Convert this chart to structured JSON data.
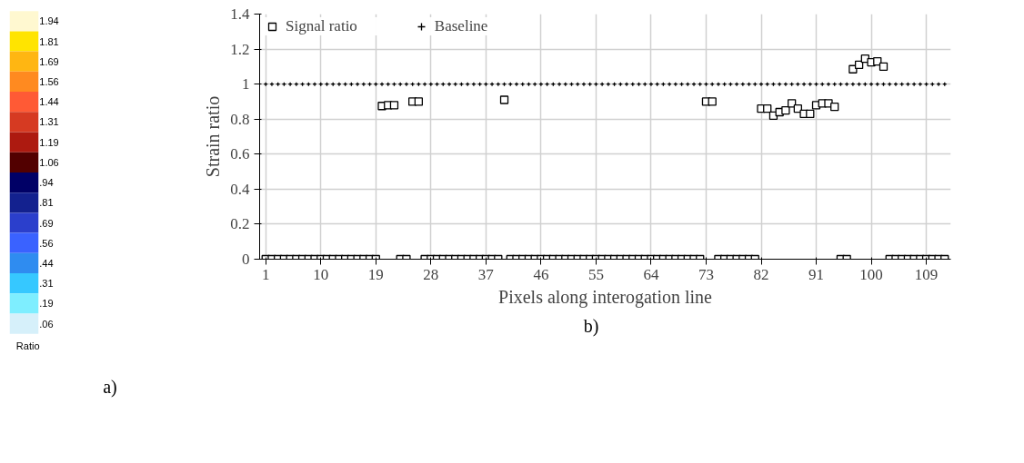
{
  "chart_data": [
    {
      "type": "other",
      "categories": [
        "1.94",
        "1.81",
        "1.69",
        "1.56",
        "1.44",
        "1.31",
        "1.19",
        "1.06",
        ".94",
        ".81",
        ".69",
        ".56",
        ".44",
        ".31",
        ".19",
        ".06"
      ],
      "colors": [
        "#fff8d0",
        "#ffe400",
        "#ffb612",
        "#ff8a20",
        "#ff5a35",
        "#d63a22",
        "#ad1a10",
        "#520000",
        "#000066",
        "#13218f",
        "#2b3fcc",
        "#3a62ff",
        "#2f8cf0",
        "#36c8ff",
        "#7eeeff",
        "#d6f0fa"
      ],
      "xlabel": "Ratio",
      "annotations": [
        "a)"
      ]
    },
    {
      "type": "scatter",
      "xlabel": "Pixels along interogation line",
      "ylabel": "Strain ratio",
      "x": [
        1,
        2,
        3,
        4,
        5,
        6,
        7,
        8,
        9,
        10,
        11,
        12,
        13,
        14,
        15,
        16,
        17,
        18,
        19,
        20,
        21,
        22,
        23,
        24,
        25,
        26,
        27,
        28,
        29,
        30,
        31,
        32,
        33,
        34,
        35,
        36,
        37,
        38,
        39,
        40,
        41,
        42,
        43,
        44,
        45,
        46,
        47,
        48,
        49,
        50,
        51,
        52,
        53,
        54,
        55,
        56,
        57,
        58,
        59,
        60,
        61,
        62,
        63,
        64,
        65,
        66,
        67,
        68,
        69,
        70,
        71,
        72,
        73,
        74,
        75,
        76,
        77,
        78,
        79,
        80,
        81,
        82,
        83,
        84,
        85,
        86,
        87,
        88,
        89,
        90,
        91,
        92,
        93,
        94,
        95,
        96,
        97,
        98,
        99,
        100,
        101,
        102,
        103,
        104,
        105,
        106,
        107,
        108,
        109,
        110,
        111,
        112
      ],
      "series": [
        {
          "name": "Signal ratio",
          "color": "#000000",
          "marker": "square",
          "values": [
            0,
            0,
            0,
            0,
            0,
            0,
            0,
            0,
            0,
            0,
            0,
            0,
            0,
            0,
            0,
            0,
            0,
            0,
            0,
            0.875,
            0.88,
            0.88,
            0,
            0,
            0.9,
            0.9,
            0,
            0,
            0,
            0,
            0,
            0,
            0,
            0,
            0,
            0,
            0,
            0,
            0,
            0.91,
            0,
            0,
            0,
            0,
            0,
            0,
            0,
            0,
            0,
            0,
            0,
            0,
            0,
            0,
            0,
            0,
            0,
            0,
            0,
            0,
            0,
            0,
            0,
            0,
            0,
            0,
            0,
            0,
            0,
            0,
            0,
            0,
            0.9,
            0.9,
            0,
            0,
            0,
            0,
            0,
            0,
            0,
            0.86,
            0.86,
            0.82,
            0.84,
            0.85,
            0.89,
            0.86,
            0.83,
            0.83,
            0.88,
            0.89,
            0.89,
            0.87,
            0,
            0,
            1.085,
            1.11,
            1.145,
            1.125,
            1.13,
            1.1,
            0,
            0,
            0,
            0,
            0,
            0,
            0,
            0,
            0,
            0
          ]
        },
        {
          "name": "Baseline",
          "color": "#000000",
          "marker": "cross",
          "values": [
            1,
            1,
            1,
            1,
            1,
            1,
            1,
            1,
            1,
            1,
            1,
            1,
            1,
            1,
            1,
            1,
            1,
            1,
            1,
            1,
            1,
            1,
            1,
            1,
            1,
            1,
            1,
            1,
            1,
            1,
            1,
            1,
            1,
            1,
            1,
            1,
            1,
            1,
            1,
            1,
            1,
            1,
            1,
            1,
            1,
            1,
            1,
            1,
            1,
            1,
            1,
            1,
            1,
            1,
            1,
            1,
            1,
            1,
            1,
            1,
            1,
            1,
            1,
            1,
            1,
            1,
            1,
            1,
            1,
            1,
            1,
            1,
            1,
            1,
            1,
            1,
            1,
            1,
            1,
            1,
            1,
            1,
            1,
            1,
            1,
            1,
            1,
            1,
            1,
            1,
            1,
            1,
            1,
            1,
            1,
            1,
            1,
            1,
            1,
            1,
            1,
            1,
            1,
            1,
            1,
            1,
            1,
            1,
            1,
            1,
            1,
            1
          ]
        }
      ],
      "xlim": [
        0,
        113
      ],
      "xticks": [
        1,
        10,
        19,
        28,
        37,
        46,
        55,
        64,
        73,
        82,
        91,
        100,
        109
      ],
      "ylim": [
        0,
        1.4
      ],
      "yticks": [
        0,
        0.2,
        0.4,
        0.6,
        0.8,
        1,
        1.2,
        1.4
      ],
      "grid": true,
      "legend": "top left",
      "annotations": [
        "b)"
      ]
    }
  ]
}
